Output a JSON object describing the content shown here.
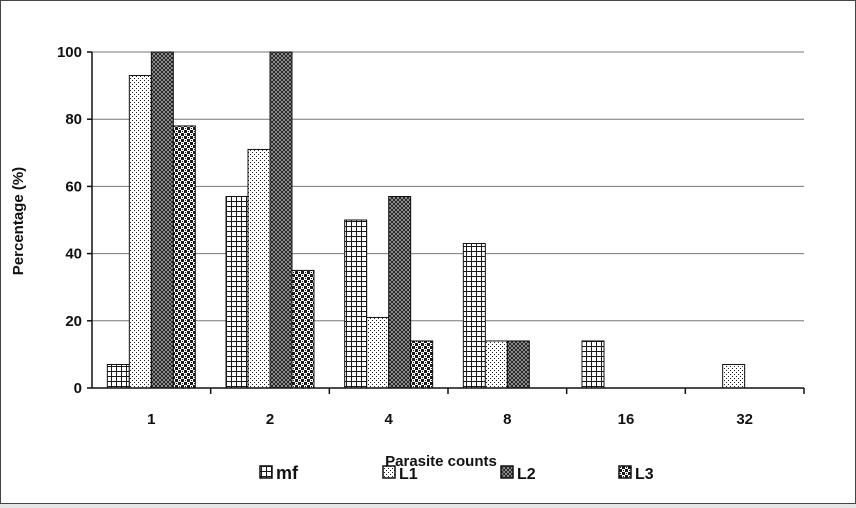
{
  "chart_data": {
    "type": "bar",
    "title": "",
    "xlabel": "Parasite counts",
    "ylabel": "Percentage (%)",
    "ylim": [
      0,
      100
    ],
    "yticks": [
      0,
      20,
      40,
      60,
      80,
      100
    ],
    "grid": true,
    "legend_position": "bottom",
    "categories": [
      "1",
      "2",
      "4",
      "8",
      "16",
      "32"
    ],
    "series": [
      {
        "name": "mf",
        "pattern": "grid",
        "values": [
          7,
          57,
          50,
          43,
          14,
          0
        ]
      },
      {
        "name": "L1",
        "pattern": "dots",
        "values": [
          93,
          71,
          21,
          14,
          0,
          7
        ]
      },
      {
        "name": "L2",
        "pattern": "dense-check",
        "values": [
          100,
          100,
          57,
          14,
          0,
          0
        ]
      },
      {
        "name": "L3",
        "pattern": "cross-dots",
        "values": [
          78,
          35,
          14,
          0,
          0,
          0
        ]
      }
    ]
  }
}
